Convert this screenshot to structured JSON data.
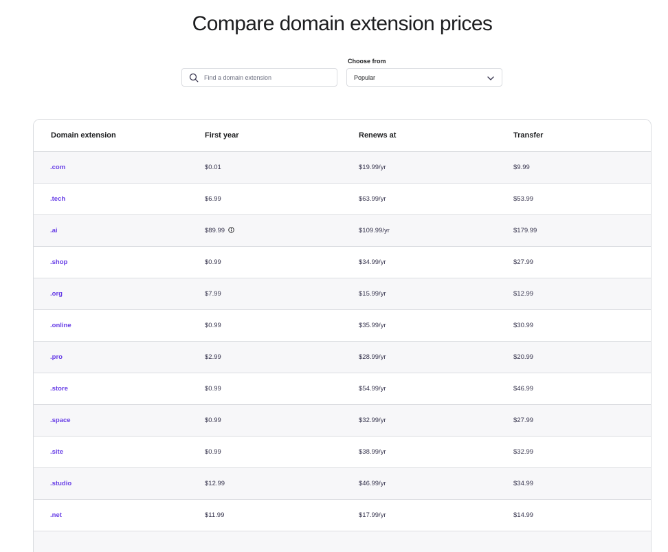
{
  "page": {
    "title": "Compare domain extension prices"
  },
  "search": {
    "placeholder": "Find a domain extension",
    "icon": "search-icon"
  },
  "filter": {
    "label": "Choose from",
    "selected": "Popular",
    "icon": "chevron-down-icon"
  },
  "table": {
    "headers": [
      "Domain extension",
      "First year",
      "Renews at",
      "Transfer"
    ],
    "rows": [
      {
        "ext": ".com",
        "first_year": "$0.01",
        "renews": "$19.99/yr",
        "transfer": "$9.99"
      },
      {
        "ext": ".tech",
        "first_year": "$6.99",
        "renews": "$63.99/yr",
        "transfer": "$53.99"
      },
      {
        "ext": ".ai",
        "first_year": "$89.99",
        "renews": "$109.99/yr",
        "transfer": "$179.99",
        "info_icon": true
      },
      {
        "ext": ".shop",
        "first_year": "$0.99",
        "renews": "$34.99/yr",
        "transfer": "$27.99"
      },
      {
        "ext": ".org",
        "first_year": "$7.99",
        "renews": "$15.99/yr",
        "transfer": "$12.99"
      },
      {
        "ext": ".online",
        "first_year": "$0.99",
        "renews": "$35.99/yr",
        "transfer": "$30.99"
      },
      {
        "ext": ".pro",
        "first_year": "$2.99",
        "renews": "$28.99/yr",
        "transfer": "$20.99"
      },
      {
        "ext": ".store",
        "first_year": "$0.99",
        "renews": "$54.99/yr",
        "transfer": "$46.99"
      },
      {
        "ext": ".space",
        "first_year": "$0.99",
        "renews": "$32.99/yr",
        "transfer": "$27.99"
      },
      {
        "ext": ".site",
        "first_year": "$0.99",
        "renews": "$38.99/yr",
        "transfer": "$32.99"
      },
      {
        "ext": ".studio",
        "first_year": "$12.99",
        "renews": "$46.99/yr",
        "transfer": "$34.99"
      },
      {
        "ext": ".net",
        "first_year": "$11.99",
        "renews": "$17.99/yr",
        "transfer": "$14.99"
      }
    ]
  },
  "colors": {
    "accent": "#673de6",
    "row_alt": "#f4f5ff",
    "border": "#dadce0",
    "text": "#1d1e20"
  }
}
